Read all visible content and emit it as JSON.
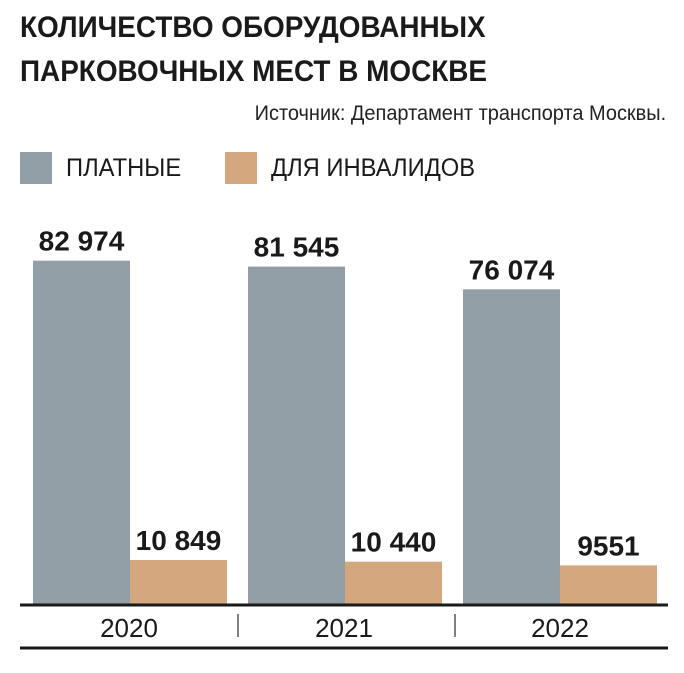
{
  "header": {
    "title_line1": "КОЛИЧЕСТВО ОБОРУДОВАННЫХ",
    "title_line2": "ПАРКОВОЧНЫХ МЕСТ В МОСКВЕ",
    "source": "Источник: Департамент транспорта Москвы."
  },
  "chart_data": {
    "type": "bar",
    "categories": [
      "2020",
      "2021",
      "2022"
    ],
    "series": [
      {
        "name": "ПЛАТНЫЕ",
        "color": "#929fa6",
        "values": [
          82974,
          81545,
          76074
        ],
        "labels": [
          "82 974",
          "81 545",
          "76 074"
        ]
      },
      {
        "name": "ДЛЯ ИНВАЛИДОВ",
        "color": "#d4a77e",
        "values": [
          10849,
          10440,
          9551
        ],
        "labels": [
          "10 849",
          "10 440",
          "9551"
        ]
      }
    ],
    "ylim": [
      0,
      100000
    ],
    "grid": false,
    "legend": "top-left"
  }
}
